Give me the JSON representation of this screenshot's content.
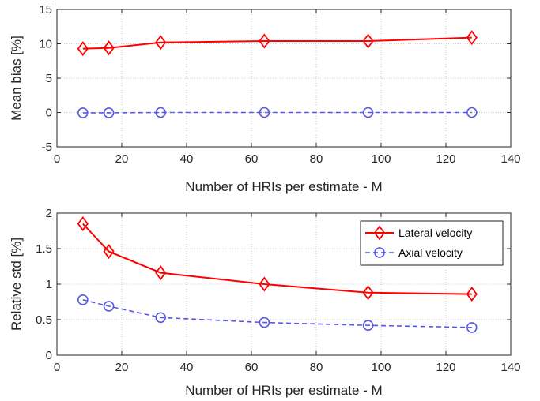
{
  "chart_data": [
    {
      "type": "line",
      "title": "",
      "xlabel": "Number of HRIs per estimate - M",
      "ylabel": "Mean bias [%]",
      "xlim": [
        0,
        140
      ],
      "ylim": [
        -5,
        15
      ],
      "xticks": [
        "0",
        "20",
        "40",
        "60",
        "80",
        "100",
        "120",
        "140"
      ],
      "yticks": [
        "-5",
        "0",
        "5",
        "10",
        "15"
      ],
      "grid": true,
      "legend": "none",
      "series": [
        {
          "name": "Lateral velocity",
          "color": "#ff0000",
          "marker": "diamond",
          "line": "solid",
          "points": [
            [
              8,
              9.3
            ],
            [
              16,
              9.4
            ],
            [
              32,
              10.2
            ],
            [
              64,
              10.4
            ],
            [
              96,
              10.4
            ],
            [
              128,
              10.9
            ]
          ]
        },
        {
          "name": "Axial velocity",
          "color": "#5757e6",
          "marker": "circle",
          "line": "dashed",
          "points": [
            [
              8,
              -0.05
            ],
            [
              16,
              -0.05
            ],
            [
              32,
              0.0
            ],
            [
              64,
              0.0
            ],
            [
              96,
              0.0
            ],
            [
              128,
              0.0
            ]
          ]
        }
      ]
    },
    {
      "type": "line",
      "title": "",
      "xlabel": "Number of HRIs per estimate - M",
      "ylabel": "Relative std [%]",
      "xlim": [
        0,
        140
      ],
      "ylim": [
        0,
        2
      ],
      "xticks": [
        "0",
        "20",
        "40",
        "60",
        "80",
        "100",
        "120",
        "140"
      ],
      "yticks": [
        "0",
        "0.5",
        "1",
        "1.5",
        "2"
      ],
      "grid": true,
      "legend": "top-right",
      "series": [
        {
          "name": "Lateral velocity",
          "color": "#ff0000",
          "marker": "diamond",
          "line": "solid",
          "points": [
            [
              8,
              1.85
            ],
            [
              16,
              1.46
            ],
            [
              32,
              1.16
            ],
            [
              64,
              1.0
            ],
            [
              96,
              0.88
            ],
            [
              128,
              0.86
            ]
          ]
        },
        {
          "name": "Axial velocity",
          "color": "#5757e6",
          "marker": "circle",
          "line": "dashed",
          "points": [
            [
              8,
              0.78
            ],
            [
              16,
              0.69
            ],
            [
              32,
              0.53
            ],
            [
              64,
              0.46
            ],
            [
              96,
              0.42
            ],
            [
              128,
              0.39
            ]
          ]
        }
      ]
    }
  ]
}
